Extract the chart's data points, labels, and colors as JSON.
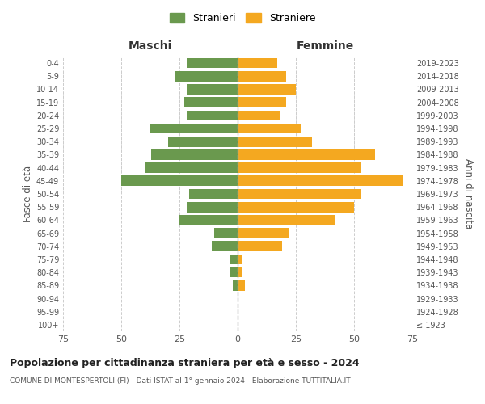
{
  "age_groups": [
    "100+",
    "95-99",
    "90-94",
    "85-89",
    "80-84",
    "75-79",
    "70-74",
    "65-69",
    "60-64",
    "55-59",
    "50-54",
    "45-49",
    "40-44",
    "35-39",
    "30-34",
    "25-29",
    "20-24",
    "15-19",
    "10-14",
    "5-9",
    "0-4"
  ],
  "birth_years": [
    "≤ 1923",
    "1924-1928",
    "1929-1933",
    "1934-1938",
    "1939-1943",
    "1944-1948",
    "1949-1953",
    "1954-1958",
    "1959-1963",
    "1964-1968",
    "1969-1973",
    "1974-1978",
    "1979-1983",
    "1984-1988",
    "1989-1993",
    "1994-1998",
    "1999-2003",
    "2004-2008",
    "2009-2013",
    "2014-2018",
    "2019-2023"
  ],
  "maschi": [
    0,
    0,
    0,
    2,
    3,
    3,
    11,
    10,
    25,
    22,
    21,
    50,
    40,
    37,
    30,
    38,
    22,
    23,
    22,
    27,
    22
  ],
  "femmine": [
    0,
    0,
    0,
    3,
    2,
    2,
    19,
    22,
    42,
    50,
    53,
    71,
    53,
    59,
    32,
    27,
    18,
    21,
    25,
    21,
    17
  ],
  "maschi_color": "#6a994e",
  "femmine_color": "#f4a820",
  "background_color": "#ffffff",
  "grid_color": "#cccccc",
  "title": "Popolazione per cittadinanza straniera per età e sesso - 2024",
  "subtitle": "COMUNE DI MONTESPERTOLI (FI) - Dati ISTAT al 1° gennaio 2024 - Elaborazione TUTTITALIA.IT",
  "xlabel_left": "Maschi",
  "xlabel_right": "Femmine",
  "ylabel_left": "Fasce di età",
  "ylabel_right": "Anni di nascita",
  "legend_stranieri": "Stranieri",
  "legend_straniere": "Straniere",
  "xlim": 75
}
